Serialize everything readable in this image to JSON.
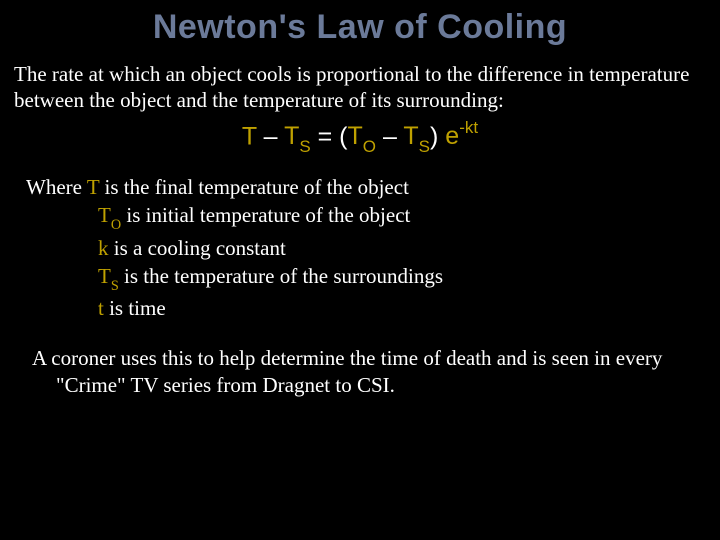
{
  "colors": {
    "background": "#000000",
    "text": "#ffffff",
    "title": "#6b7a99",
    "variable": "#bfa100"
  },
  "title": "Newton's Law of Cooling",
  "intro": "The rate at which an object cools is proportional to the difference in temperature between the object and the temperature of its surrounding:",
  "equation": {
    "T": "T",
    "minus1": " – ",
    "TS1": "T",
    "S1": "S",
    "eq": " = (",
    "TO": "T",
    "O": "O",
    "minus2": " – ",
    "TS2": "T",
    "S2": "S",
    "close": ") ",
    "e": "e",
    "exp_minus": "-",
    "k": "k",
    "t": "t"
  },
  "defs": {
    "where": "Where ",
    "T": "T",
    "T_text": " is the final temperature of the object",
    "TO": "T",
    "O_sub": "O",
    "TO_text": " is initial temperature of the object",
    "k": "k",
    "k_text": " is a cooling constant",
    "TS": "T",
    "S_sub": "S",
    "TS_text": " is the temperature of the surroundings",
    "t": "t",
    "t_text": " is time"
  },
  "footer": "A coroner uses this to help determine the time of death and is seen in every \"Crime\" TV series from Dragnet to CSI."
}
